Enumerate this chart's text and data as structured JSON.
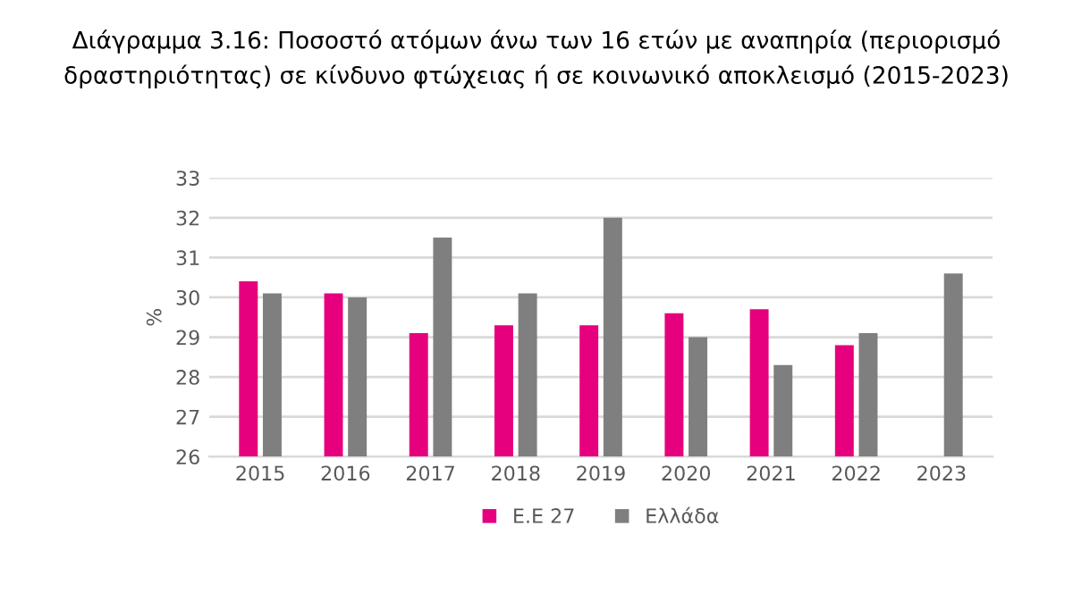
{
  "chart_data": {
    "type": "bar",
    "title": "Διάγραμμα 3.16: Ποσοστό ατόμων άνω των 16 ετών με αναπηρία (περιορισμό δραστηριότητας) σε κίνδυνο φτώχειας ή σε κοινωνικό αποκλεισμό (2015-2023)",
    "ylabel": "%",
    "categories": [
      "2015",
      "2016",
      "2017",
      "2018",
      "2019",
      "2020",
      "2021",
      "2022",
      "2023"
    ],
    "series": [
      {
        "name": "Ε.Ε 27",
        "color": "#e6007e",
        "values": [
          30.4,
          30.1,
          29.1,
          29.3,
          29.3,
          29.6,
          29.7,
          28.8,
          null
        ]
      },
      {
        "name": "Ελλάδα",
        "color": "#7f7f7f",
        "values": [
          30.1,
          30.0,
          31.5,
          30.1,
          32.0,
          29.0,
          28.3,
          29.1,
          30.6
        ]
      }
    ],
    "ylim": [
      26,
      33
    ],
    "yticks": [
      26,
      27,
      28,
      29,
      30,
      31,
      32,
      33
    ],
    "grid": "y",
    "legend": "bottom"
  }
}
